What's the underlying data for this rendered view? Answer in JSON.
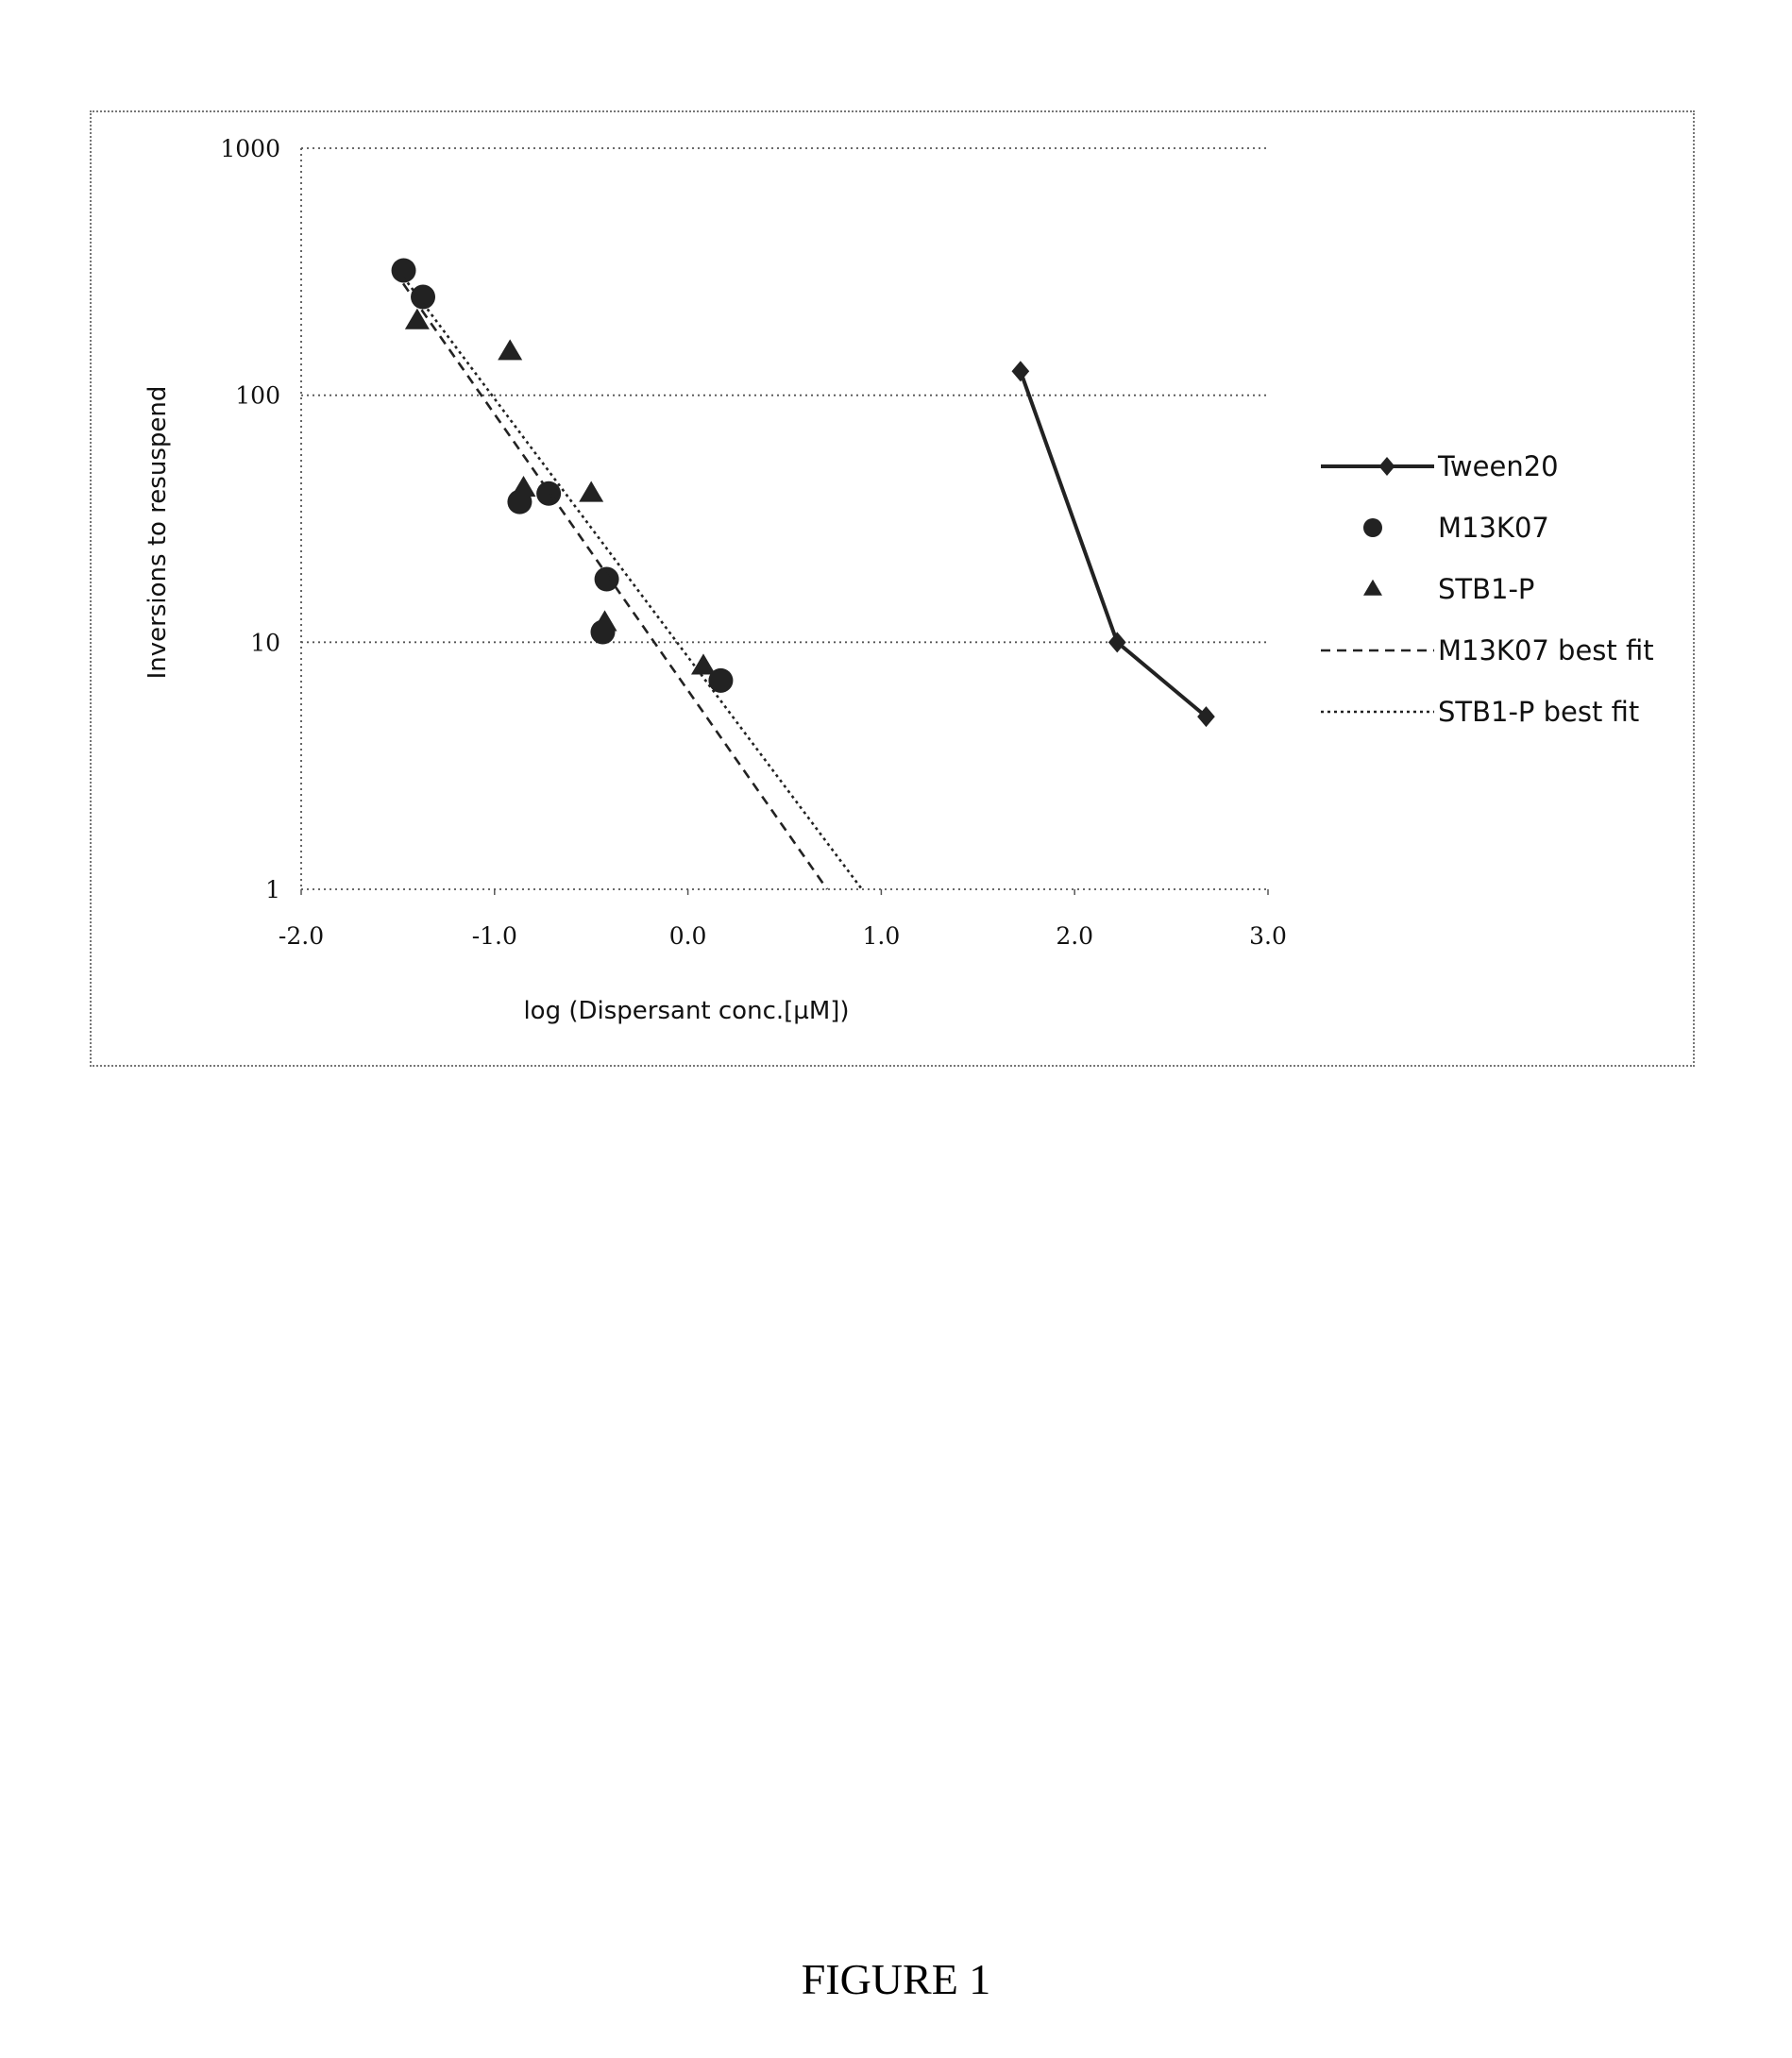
{
  "figure_caption": "FIGURE 1",
  "chart_data": {
    "type": "scatter",
    "xlabel": "log (Dispersant conc.[µM])",
    "ylabel": "Inversions to resuspend",
    "xlim": [
      -2.0,
      3.0
    ],
    "ylim": [
      1,
      1000
    ],
    "y_scale": "log",
    "x_ticks": [
      "-2.0",
      "-1.0",
      "0.0",
      "1.0",
      "2.0",
      "3.0"
    ],
    "y_ticks": [
      "1",
      "10",
      "100",
      "1000"
    ],
    "grid": "horizontal dotted",
    "legend_position": "right",
    "series": [
      {
        "name": "Tween20",
        "style": "line-marker",
        "marker": "diamond",
        "color": "#222222",
        "x": [
          1.72,
          2.22,
          2.68
        ],
        "y": [
          125,
          10,
          5
        ]
      },
      {
        "name": "M13K07",
        "style": "marker",
        "marker": "circle",
        "color": "#222222",
        "x": [
          -1.47,
          -1.37,
          -0.87,
          -0.72,
          -0.42,
          -0.44,
          0.17
        ],
        "y": [
          320,
          250,
          37,
          40,
          18,
          11,
          7
        ]
      },
      {
        "name": "STB1-P",
        "style": "marker",
        "marker": "triangle",
        "color": "#222222",
        "x": [
          -1.4,
          -0.92,
          -0.85,
          -0.5,
          -0.43,
          0.08
        ],
        "y": [
          200,
          150,
          42,
          40,
          12,
          8
        ]
      },
      {
        "name": "M13K07 best fit",
        "style": "dashed",
        "color": "#222222",
        "x": [
          -1.52,
          0.72
        ],
        "y": [
          320,
          1
        ]
      },
      {
        "name": "STB1-P best fit",
        "style": "dotted",
        "color": "#222222",
        "x": [
          -1.47,
          0.9
        ],
        "y": [
          300,
          1
        ]
      }
    ]
  }
}
